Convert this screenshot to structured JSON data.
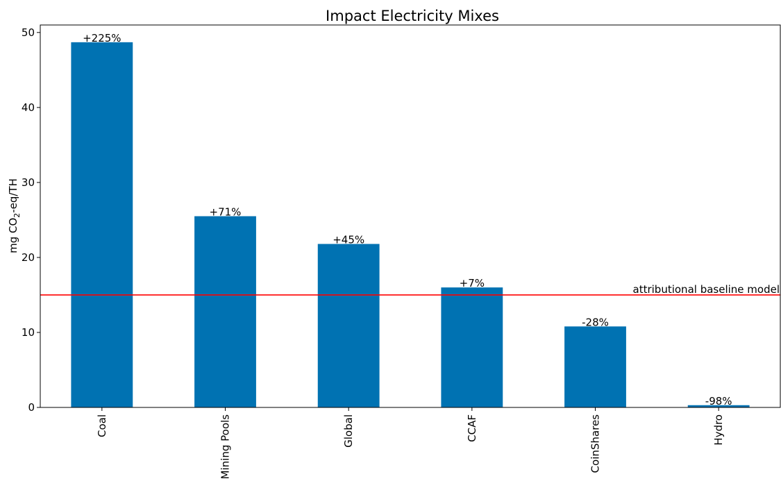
{
  "chart_data": {
    "type": "bar",
    "title": "Impact Electricity Mixes",
    "xlabel": "",
    "ylabel": "mg CO",
    "ylabel_subscript": "2",
    "ylabel_suffix": "-eq/TH",
    "categories": [
      "Coal",
      "Mining Pools",
      "Global",
      "CCAF",
      "CoinShares",
      "Hydro"
    ],
    "values": [
      48.7,
      25.5,
      21.8,
      16.0,
      10.8,
      0.3
    ],
    "data_labels": [
      "+225%",
      "+71%",
      "+45%",
      "+7%",
      "-28%",
      "-98%"
    ],
    "ylim": [
      0,
      51
    ],
    "yticks": [
      0,
      10,
      20,
      30,
      40,
      50
    ],
    "grid": false,
    "bar_color": "#0072b2",
    "reference_line": {
      "value": 15,
      "label": "attributional baseline model",
      "color": "#ff0000"
    }
  }
}
